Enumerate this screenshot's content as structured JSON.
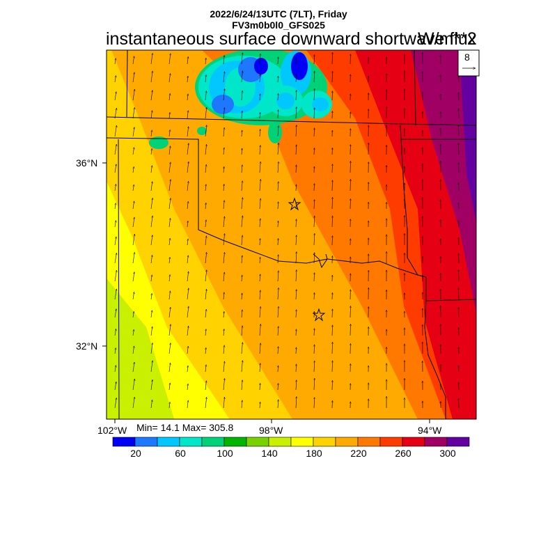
{
  "header": {
    "datetime": "2022/6/24/13UTC (7LT), Friday",
    "model": "FV3m0b0l0_GFS025",
    "title": "instantaneous surface downward shortwave flux",
    "units": "W/m**2"
  },
  "vector_legend": {
    "value": "8"
  },
  "axes": {
    "lat_labels": [
      "36°N",
      "32°N"
    ],
    "lon_labels": [
      "102°W",
      "98°W",
      "94°W"
    ]
  },
  "stats": {
    "text": "Min= 14.1 Max= 305.8"
  },
  "colorbar": {
    "colors": [
      "#0000f5",
      "#1e78ff",
      "#00c8ff",
      "#00e6c8",
      "#00d278",
      "#00b400",
      "#78d200",
      "#c8f000",
      "#ffff00",
      "#ffd200",
      "#ffaa00",
      "#ff7800",
      "#ff3c00",
      "#e60014",
      "#a00064",
      "#6400a0"
    ],
    "tick_labels": [
      "20",
      "60",
      "100",
      "140",
      "180",
      "220",
      "260",
      "300"
    ]
  }
}
